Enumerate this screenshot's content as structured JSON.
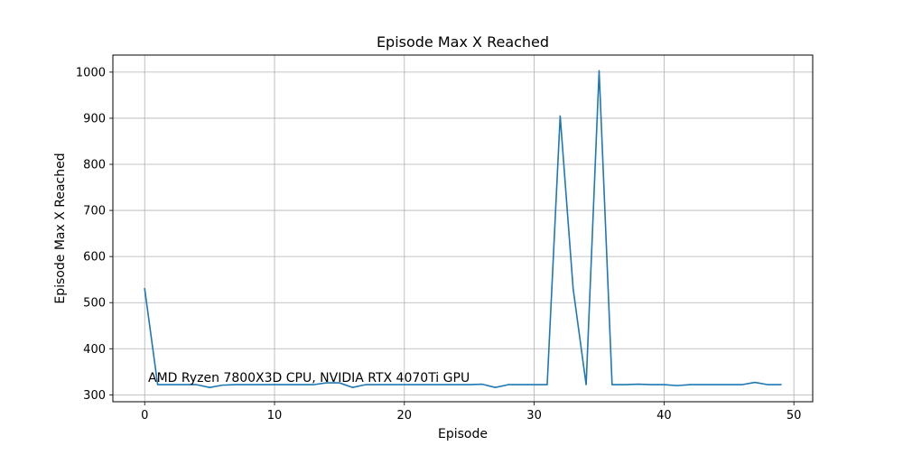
{
  "chart_data": {
    "type": "line",
    "title": "Episode Max X Reached",
    "xlabel": "Episode",
    "ylabel": "Episode Max X Reached",
    "annotation": "AMD Ryzen 7800X3D CPU, NVIDIA RTX 4070Ti GPU",
    "xlim": [
      -2.45,
      51.45
    ],
    "ylim": [
      285,
      1037
    ],
    "xticks": [
      0,
      10,
      20,
      30,
      40,
      50
    ],
    "yticks": [
      300,
      400,
      500,
      600,
      700,
      800,
      900,
      1000
    ],
    "grid": true,
    "line_color": "#1f77b4",
    "series": [
      {
        "x": [
          0,
          1,
          2,
          3,
          4,
          5,
          6,
          7,
          8,
          9,
          10,
          11,
          12,
          13,
          14,
          15,
          16,
          17,
          18,
          19,
          20,
          21,
          22,
          23,
          24,
          25,
          26,
          27,
          28,
          29,
          30,
          31,
          32,
          33,
          34,
          35,
          36,
          37,
          38,
          39,
          40,
          41,
          42,
          43,
          44,
          45,
          46,
          47,
          48,
          49
        ],
        "values": [
          530,
          322,
          322,
          322,
          322,
          316,
          321,
          322,
          322,
          322,
          322,
          322,
          322,
          322,
          326,
          326,
          316,
          322,
          322,
          322,
          322,
          322,
          322,
          322,
          322,
          322,
          323,
          316,
          322,
          322,
          322,
          322,
          905,
          530,
          322,
          1003,
          322,
          322,
          323,
          322,
          322,
          320,
          322,
          322,
          322,
          322,
          322,
          327,
          322,
          322
        ]
      }
    ]
  }
}
